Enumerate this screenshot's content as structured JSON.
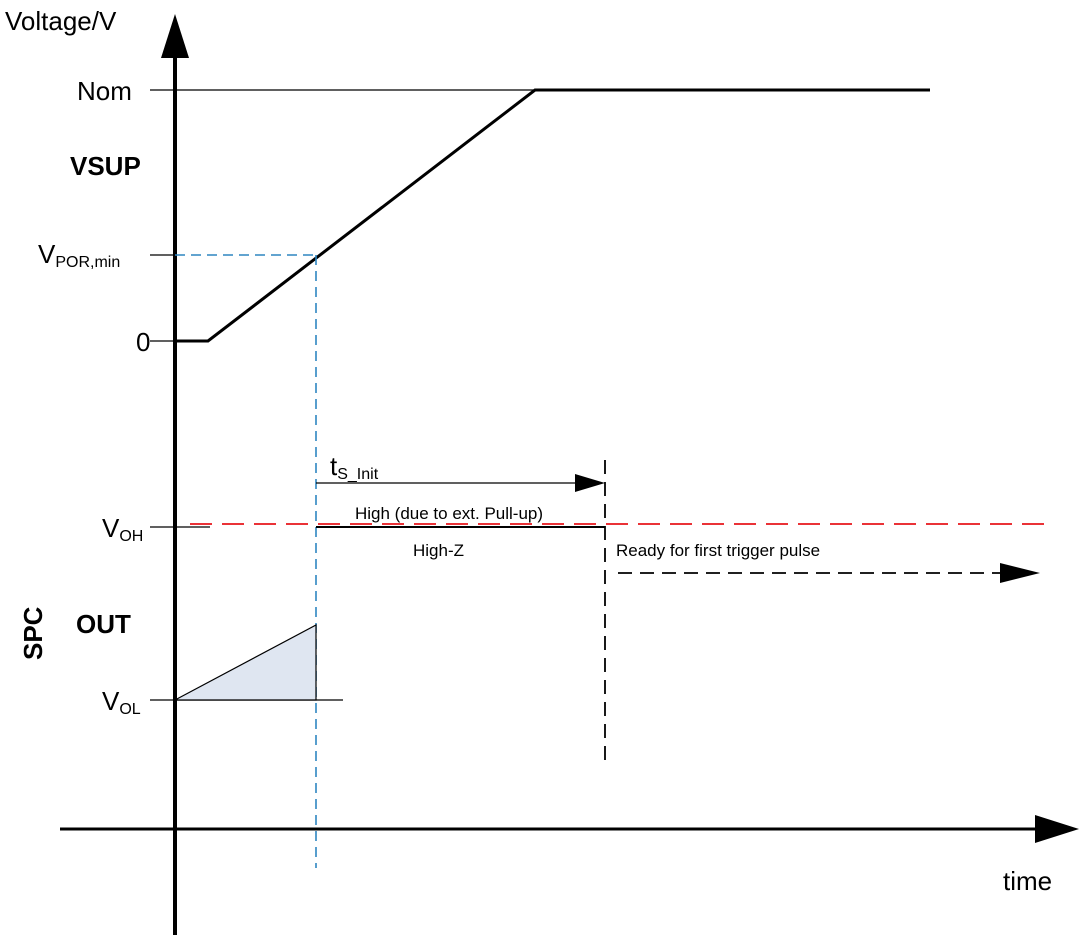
{
  "axes": {
    "y_label": "Voltage/V",
    "x_label": "time"
  },
  "vsup": {
    "group_label": "VSUP",
    "levels": {
      "nom": "Nom",
      "vpor_main": "V",
      "vpor_sub": "POR,min",
      "zero": "0"
    }
  },
  "spc": {
    "group_label": "SPC",
    "sub_label": "OUT",
    "levels": {
      "voh_main": "V",
      "voh_sub": "OH",
      "vol_main": "V",
      "vol_sub": "OL"
    }
  },
  "annotations": {
    "tsinit_main": "t",
    "tsinit_sub": "S_Init",
    "high_pullup": "High (due to ext. Pull-up)",
    "high_z": "High-Z",
    "ready": "Ready for first trigger pulse"
  },
  "colors": {
    "axis": "#000000",
    "vpor_guide": "#2e86c1",
    "voh_pullup": "#e8151b",
    "vol_fill": "#dfe6f1"
  }
}
